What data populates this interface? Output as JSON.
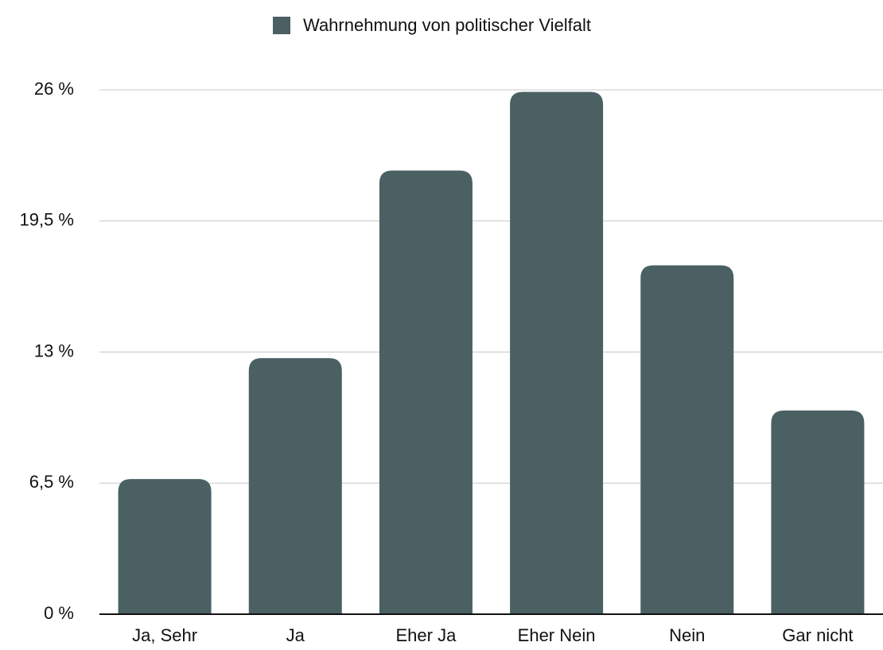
{
  "chart_data": {
    "type": "bar",
    "categories": [
      "Ja, Sehr",
      "Ja",
      "Eher Ja",
      "Eher Nein",
      "Nein",
      "Gar nicht"
    ],
    "series": [
      {
        "name": "Wahrnehmung von politischer Vielfalt",
        "color": "#4a6063",
        "values": [
          6.7,
          12.7,
          22,
          25.9,
          17.3,
          10.1
        ]
      }
    ],
    "ylim": [
      0,
      26
    ],
    "yticks": [
      {
        "value": 0,
        "label": "0 %"
      },
      {
        "value": 6.5,
        "label": "6,5 %"
      },
      {
        "value": 13,
        "label": "13 %"
      },
      {
        "value": 19.5,
        "label": "19,5 %"
      },
      {
        "value": 26,
        "label": "26 %"
      }
    ],
    "grid": true,
    "legend": "top"
  }
}
